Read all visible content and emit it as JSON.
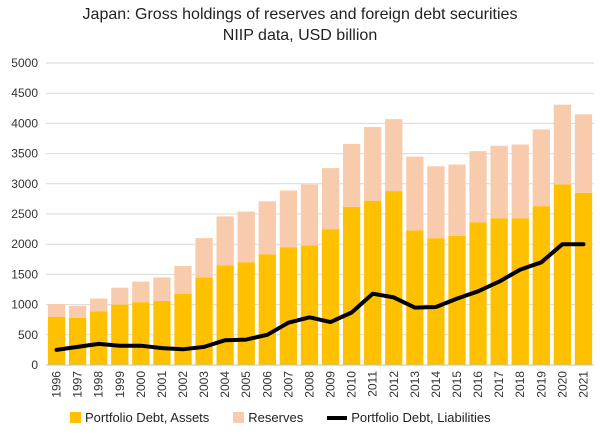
{
  "chart_data": {
    "type": "bar",
    "title": "Japan: Gross holdings of reserves and foreign debt securities",
    "subtitle": "NIIP data, USD billion",
    "xlabel": "",
    "ylabel": "",
    "ylim": [
      0,
      5000
    ],
    "yticks": [
      0,
      500,
      1000,
      1500,
      2000,
      2500,
      3000,
      3500,
      4000,
      4500,
      5000
    ],
    "grid": true,
    "legend_position": "bottom",
    "stacked": true,
    "categories": [
      "1996",
      "1997",
      "1998",
      "1999",
      "2000",
      "2001",
      "2002",
      "2003",
      "2004",
      "2005",
      "2006",
      "2007",
      "2008",
      "2009",
      "2010",
      "2011",
      "2012",
      "2013",
      "2014",
      "2015",
      "2016",
      "2017",
      "2018",
      "2019",
      "2020",
      "2021"
    ],
    "series": [
      {
        "name": "Portfolio Debt, Assets",
        "kind": "bar",
        "color": "#FFC000",
        "values": [
          800,
          780,
          890,
          1000,
          1040,
          1060,
          1180,
          1450,
          1650,
          1700,
          1830,
          1950,
          1980,
          2250,
          2620,
          2720,
          2880,
          2230,
          2100,
          2140,
          2360,
          2430,
          2430,
          2630,
          2990,
          2850
        ]
      },
      {
        "name": "Reserves",
        "kind": "bar",
        "color": "#F8CBAD",
        "values": [
          210,
          200,
          210,
          280,
          340,
          390,
          460,
          650,
          810,
          840,
          880,
          940,
          1010,
          1010,
          1040,
          1220,
          1190,
          1220,
          1190,
          1180,
          1180,
          1200,
          1220,
          1270,
          1320,
          1300
        ]
      },
      {
        "name": "Portfolio Debt, Liabilities",
        "kind": "line",
        "color": "#000000",
        "values": [
          250,
          300,
          350,
          320,
          320,
          280,
          260,
          300,
          410,
          420,
          500,
          700,
          790,
          710,
          870,
          1180,
          1120,
          950,
          960,
          1100,
          1220,
          1380,
          1580,
          1700,
          2000,
          2000
        ]
      }
    ]
  }
}
